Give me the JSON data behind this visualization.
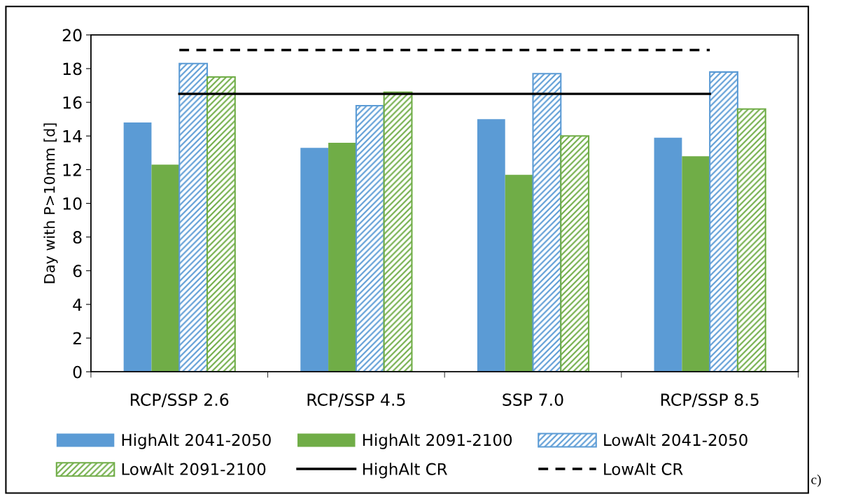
{
  "chart_data": {
    "type": "bar",
    "ylabel": "Day with P>10mm [d]",
    "categories": [
      "RCP/SSP 2.6",
      "RCP/SSP 4.5",
      "SSP 7.0",
      "RCP/SSP 8.5"
    ],
    "series": [
      {
        "name": "HighAlt 2041-2050",
        "color": "#5b9bd5",
        "values": [
          14.8,
          13.3,
          15.0,
          13.9
        ]
      },
      {
        "name": "HighAlt 2091-2100",
        "color": "#70ad47",
        "values": [
          12.3,
          13.6,
          11.7,
          12.8
        ]
      },
      {
        "name": "LowAlt 2041-2050",
        "color": "#5b9bd5",
        "values": [
          18.3,
          15.8,
          17.7,
          17.8
        ]
      },
      {
        "name": "LowAlt 2091-2100",
        "color": "#70ad47",
        "values": [
          17.5,
          16.6,
          14.0,
          15.6
        ]
      },
      {
        "name": "HighAlt CR",
        "type": "line",
        "line_style": "solid",
        "color": "#000000",
        "values": [
          16.5,
          16.5,
          16.5,
          16.5
        ]
      },
      {
        "name": "LowAlt CR",
        "type": "line",
        "line_style": "dashed",
        "color": "#000000",
        "values": [
          19.1,
          19.1,
          19.1,
          19.1
        ]
      }
    ],
    "ylim": [
      0,
      20
    ],
    "yticks": [
      0,
      2,
      4,
      6,
      8,
      10,
      12,
      14,
      16,
      18,
      20
    ],
    "grid": false,
    "legend": "bottom",
    "annotations": [
      "c)"
    ]
  }
}
